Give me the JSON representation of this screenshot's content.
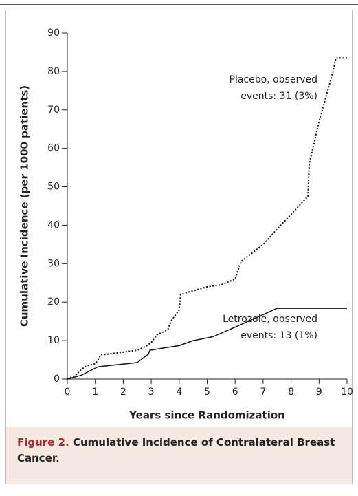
{
  "chart_data": {
    "type": "line",
    "x_label": "Years since Randomization",
    "y_label": "Cumulative Incidence (per 1000 patients)",
    "xlim": [
      0,
      10
    ],
    "xticks": [
      0,
      1,
      2,
      3,
      4,
      5,
      6,
      7,
      8,
      9,
      10
    ],
    "ylim": [
      0,
      90
    ],
    "yticks": [
      0,
      10,
      20,
      30,
      40,
      50,
      60,
      70,
      80,
      90
    ],
    "series": [
      {
        "style": "dotted",
        "color": "#111",
        "x": [
          0,
          0.3,
          0.5,
          0.7,
          1.0,
          1.1,
          1.2,
          2.0,
          2.5,
          2.8,
          3.0,
          3.2,
          3.5,
          3.6,
          3.7,
          3.9,
          4.0,
          4.05,
          5.0,
          5.5,
          6.0,
          6.2,
          7.0,
          7.5,
          8.6,
          8.65,
          9.0,
          9.5,
          9.6,
          10.0
        ],
        "values": [
          0,
          1,
          2.5,
          3.5,
          4,
          5,
          6.3,
          7,
          7.5,
          8.5,
          9.5,
          11.5,
          12.5,
          13,
          15,
          17,
          18,
          22,
          24,
          24.5,
          26,
          30.5,
          35,
          39,
          47.5,
          56,
          67,
          80,
          83.5,
          83.5
        ]
      },
      {
        "style": "solid",
        "color": "#111",
        "x": [
          0,
          0.5,
          1.1,
          2.5,
          2.9,
          2.95,
          4.0,
          4.5,
          5.2,
          6.0,
          7.5,
          10.0
        ],
        "values": [
          0,
          1,
          3.2,
          4.3,
          6.5,
          7.5,
          8.7,
          10,
          11,
          13.5,
          18.4,
          18.4
        ]
      }
    ],
    "annotations": [
      [
        "Placebo, observed",
        "events: 31 (3%)"
      ],
      [
        "Letrozole, observed",
        "events: 13 (1%)"
      ]
    ]
  },
  "caption": {
    "label": "Figure 2.",
    "text": "Cumulative Incidence of Contralateral Breast Cancer."
  }
}
